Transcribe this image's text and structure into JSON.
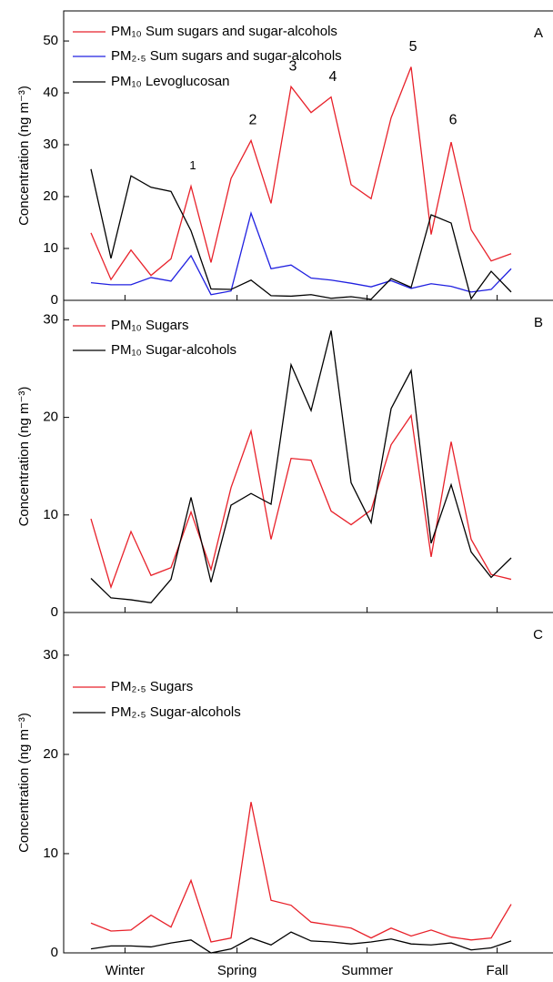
{
  "chart_data": [
    {
      "type": "line",
      "panel": "A",
      "ylabel": "Concentration (ng m⁻³)",
      "ylim": [
        0,
        55.8
      ],
      "yticks": [
        0,
        10,
        20,
        30,
        40,
        50
      ],
      "xlim": [
        -1.364,
        23.09
      ],
      "annotations": [
        "1",
        "2",
        "3",
        "4",
        "5",
        "6"
      ],
      "series": [
        {
          "name": "PM₁₀ Sum sugars and sugar-alcohols",
          "color": "#e8212a",
          "values": [
            13,
            4,
            9.7,
            4.8,
            8,
            22,
            7.3,
            23.5,
            30.8,
            18.7,
            41.2,
            36.2,
            39.2,
            22.3,
            19.6,
            35.2,
            45,
            12.7,
            30.5,
            13.6,
            7.6,
            9
          ]
        },
        {
          "name": "PM₂.₅ Sum sugars and sugar-alcohols",
          "color": "#2020e0",
          "values": [
            3.4,
            3,
            3,
            4.4,
            3.7,
            8.6,
            1.1,
            1.8,
            16.8,
            6.1,
            6.8,
            4.3,
            3.9,
            3.3,
            2.6,
            3.8,
            2.3,
            3.2,
            2.7,
            1.6,
            2.1,
            6.1
          ]
        },
        {
          "name": "PM₁₀ Levoglucosan",
          "color": "#000000",
          "values": [
            25.3,
            8.1,
            24,
            21.8,
            21,
            13.4,
            2.2,
            2.1,
            3.9,
            0.9,
            0.8,
            1.1,
            0.4,
            0.7,
            0.2,
            4.2,
            2.5,
            16.5,
            14.9,
            0.3,
            5.6,
            1.6
          ]
        }
      ]
    },
    {
      "type": "line",
      "panel": "B",
      "ylabel": "Concentration (ng m⁻³)",
      "ylim": [
        0,
        32
      ],
      "yticks": [
        0,
        10,
        20,
        30
      ],
      "xlim": [
        -1.364,
        23.09
      ],
      "series": [
        {
          "name": "PM₁₀ Sugars",
          "color": "#e8212a",
          "values": [
            9.6,
            2.6,
            8.3,
            3.8,
            4.6,
            10.3,
            4.4,
            12.8,
            18.6,
            7.5,
            15.8,
            15.6,
            10.4,
            9,
            10.5,
            17.2,
            20.2,
            5.7,
            17.5,
            7.5,
            3.9,
            3.4
          ]
        },
        {
          "name": "PM₁₀ Sugar-alcohols",
          "color": "#000000",
          "values": [
            3.5,
            1.5,
            1.3,
            1,
            3.4,
            11.8,
            3.1,
            11,
            12.2,
            11.1,
            25.4,
            20.7,
            28.9,
            13.3,
            9.2,
            20.9,
            24.8,
            7.1,
            13.1,
            6.2,
            3.6,
            5.6
          ]
        }
      ]
    },
    {
      "type": "line",
      "panel": "C",
      "ylabel": "Concentration (ng m⁻³)",
      "ylim": [
        0,
        34.3
      ],
      "yticks": [
        0,
        10,
        20,
        30
      ],
      "xlim": [
        -1.364,
        23.09
      ],
      "xticks": [
        {
          "value": 1.7,
          "label": "Winter"
        },
        {
          "value": 7.3,
          "label": "Spring"
        },
        {
          "value": 13.8,
          "label": "Summer"
        },
        {
          "value": 20.3,
          "label": "Fall"
        }
      ],
      "series": [
        {
          "name": "PM₂.₅ Sugars",
          "color": "#e8212a",
          "values": [
            3,
            2.2,
            2.3,
            3.8,
            2.6,
            7.3,
            1.1,
            1.5,
            15.2,
            5.3,
            4.8,
            3.1,
            2.8,
            2.5,
            1.5,
            2.5,
            1.7,
            2.3,
            1.6,
            1.3,
            1.5,
            4.9
          ]
        },
        {
          "name": "PM₂.₅ Sugar-alcohols",
          "color": "#000000",
          "values": [
            0.4,
            0.7,
            0.7,
            0.6,
            1,
            1.3,
            0,
            0.4,
            1.5,
            0.8,
            2.1,
            1.2,
            1.1,
            0.9,
            1.1,
            1.4,
            0.9,
            0.8,
            1,
            0.3,
            0.5,
            1.2
          ]
        }
      ]
    }
  ]
}
